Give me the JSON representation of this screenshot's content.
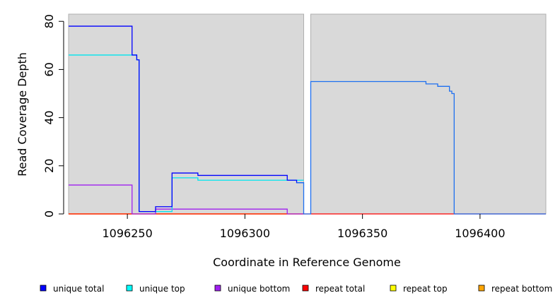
{
  "chart_data": {
    "type": "line",
    "xlabel": "Coordinate in Reference Genome",
    "ylabel": "Read Coverage Depth",
    "xlim": [
      1096225,
      1096428
    ],
    "ylim": [
      0,
      83
    ],
    "x_ticks": [
      1096250,
      1096300,
      1096350,
      1096400
    ],
    "y_ticks": [
      0,
      20,
      40,
      60,
      80
    ],
    "background_regions": [
      [
        1096225,
        1096325
      ],
      [
        1096328,
        1096428
      ]
    ],
    "legend_position": "bottom",
    "series": [
      {
        "name": "unique total",
        "color": "#0000ff",
        "x": [
          1096225,
          1096252,
          1096252,
          1096254,
          1096254,
          1096255,
          1096255,
          1096262,
          1096262,
          1096269,
          1096269,
          1096280,
          1096280,
          1096318,
          1096318,
          1096322,
          1096322,
          1096325
        ],
        "y": [
          78,
          78,
          66,
          66,
          64,
          64,
          1,
          1,
          3,
          3,
          17,
          17,
          16,
          16,
          14,
          14,
          13,
          13
        ]
      },
      {
        "name": "unique top",
        "color": "#00e5ee",
        "x": [
          1096225,
          1096252,
          1096252,
          1096254,
          1096254,
          1096255,
          1096255,
          1096262,
          1096262,
          1096269,
          1096269,
          1096280,
          1096280,
          1096325
        ],
        "y": [
          66,
          66,
          66,
          66,
          64,
          64,
          1,
          1,
          1,
          1,
          15,
          15,
          14,
          14
        ]
      },
      {
        "name": "unique bottom",
        "color": "#a020f0",
        "x": [
          1096225,
          1096252,
          1096252,
          1096262,
          1096262,
          1096318,
          1096318,
          1096325
        ],
        "y": [
          12,
          12,
          0,
          0,
          2,
          2,
          0,
          0
        ]
      },
      {
        "name": "repeat total",
        "color": "#ff0000",
        "x": [
          1096225,
          1096325,
          1096328,
          1096428
        ],
        "y": [
          0,
          0,
          0,
          0
        ]
      },
      {
        "name": "repeat top",
        "color": "#ffff00",
        "x": [
          1096225,
          1096325
        ],
        "y": [
          0,
          0
        ]
      },
      {
        "name": "repeat bottom",
        "color": "#ffa500",
        "x": [
          1096225,
          1096325
        ],
        "y": [
          0,
          0
        ]
      },
      {
        "name": "",
        "color": "#1e6ff0",
        "x": [
          1096322,
          1096325,
          1096325,
          1096328,
          1096328,
          1096377,
          1096377,
          1096382,
          1096382,
          1096387,
          1096387,
          1096388,
          1096388,
          1096389,
          1096389,
          1096428
        ],
        "y": [
          13,
          13,
          0,
          0,
          55,
          55,
          54,
          54,
          53,
          53,
          51,
          51,
          50,
          50,
          0,
          0
        ]
      }
    ]
  }
}
